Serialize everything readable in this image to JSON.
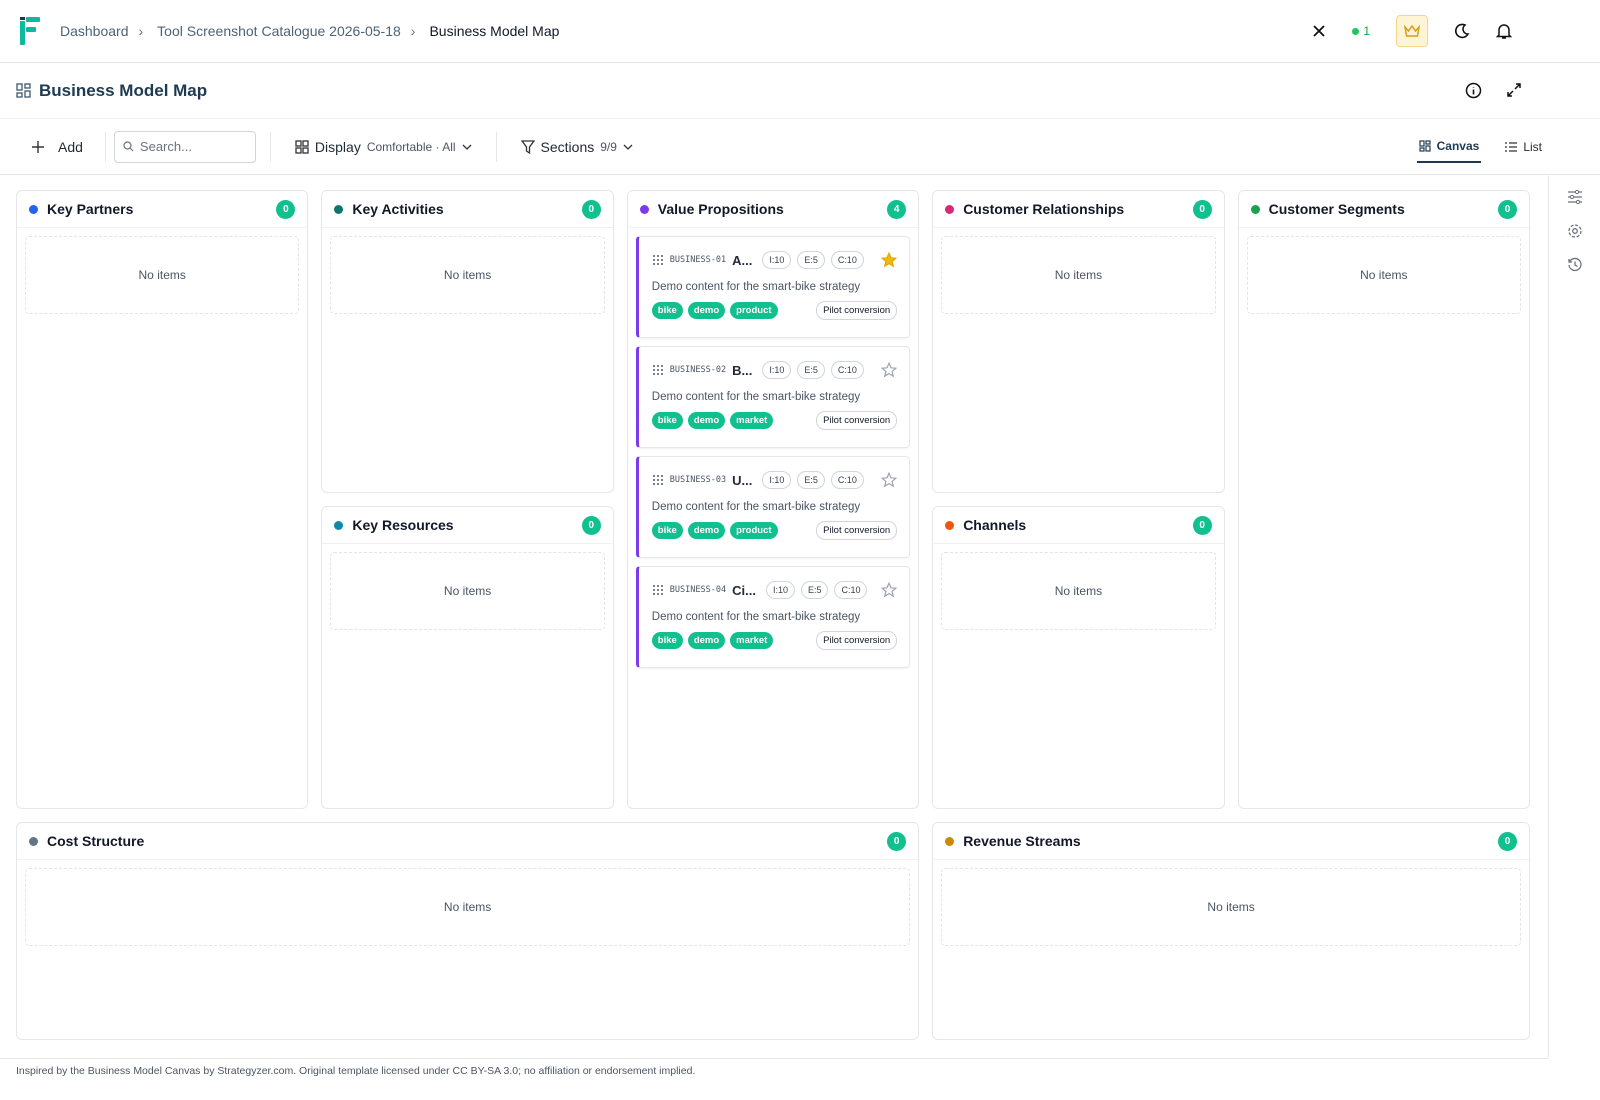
{
  "header": {
    "breadcrumbs": [
      "Dashboard",
      "Tool Screenshot Catalogue 2026-05-18",
      "Business Model Map"
    ],
    "online_count": "1"
  },
  "page": {
    "title": "Business Model Map"
  },
  "toolbar": {
    "add": "Add",
    "search_placeholder": "Search...",
    "display": "Display",
    "display_value": "Comfortable · All",
    "sections": "Sections",
    "sections_value": "9/9",
    "views": [
      "Canvas",
      "List"
    ]
  },
  "empty_label": "No items",
  "sections": [
    {
      "name": "Key Partners",
      "count": 0,
      "color": "#2563eb",
      "cards": []
    },
    {
      "name": "Key Activities",
      "count": 0,
      "color": "#0f766e",
      "cards": []
    },
    {
      "name": "Key Resources",
      "count": 0,
      "color": "#0e88a8",
      "cards": []
    },
    {
      "name": "Value Propositions",
      "count": 4,
      "color": "#7c3aed",
      "cards": [
        {
          "id": "BUSINESS-01",
          "title": "A...",
          "badges": [
            "I:10",
            "E:5",
            "C:10"
          ],
          "starred": true,
          "description": "Demo content for the smart-bike strategy workspace, written to make the tool state",
          "tags": [
            "bike",
            "demo",
            "product"
          ],
          "label": "Pilot conversion"
        },
        {
          "id": "BUSINESS-02",
          "title": "B...",
          "badges": [
            "I:10",
            "E:5",
            "C:10"
          ],
          "starred": false,
          "description": "Demo content for the smart-bike strategy workspace, written to make the tool state",
          "tags": [
            "bike",
            "demo",
            "market"
          ],
          "label": "Pilot conversion"
        },
        {
          "id": "BUSINESS-03",
          "title": "U...",
          "badges": [
            "I:10",
            "E:5",
            "C:10"
          ],
          "starred": false,
          "description": "Demo content for the smart-bike strategy workspace, written to make the tool state",
          "tags": [
            "bike",
            "demo",
            "product"
          ],
          "label": "Pilot conversion"
        },
        {
          "id": "BUSINESS-04",
          "title": "Ci...",
          "badges": [
            "I:10",
            "E:5",
            "C:10"
          ],
          "starred": false,
          "description": "Demo content for the smart-bike strategy workspace, written to make the tool state",
          "tags": [
            "bike",
            "demo",
            "market"
          ],
          "label": "Pilot conversion"
        }
      ]
    },
    {
      "name": "Customer Relationships",
      "count": 0,
      "color": "#db2777",
      "cards": []
    },
    {
      "name": "Channels",
      "count": 0,
      "color": "#ea580c",
      "cards": []
    },
    {
      "name": "Customer Segments",
      "count": 0,
      "color": "#16a34a",
      "cards": []
    },
    {
      "name": "Cost Structure",
      "count": 0,
      "color": "#64748b",
      "cards": []
    },
    {
      "name": "Revenue Streams",
      "count": 0,
      "color": "#ca8a04",
      "cards": []
    }
  ],
  "footer": "Inspired by the Business Model Canvas by Strategyzer.com. Original template licensed under CC BY-SA 3.0; no affiliation or endorsement implied."
}
